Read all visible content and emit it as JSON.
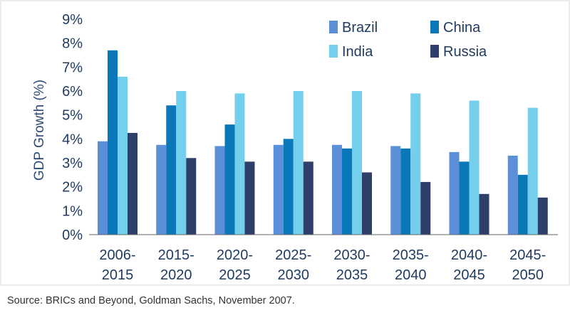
{
  "chart_data": {
    "type": "bar",
    "title": "",
    "xlabel": "",
    "ylabel": "GDP Growth (%)",
    "ylim": [
      0,
      9
    ],
    "yticks": [
      "0%",
      "1%",
      "2%",
      "3%",
      "4%",
      "5%",
      "6%",
      "7%",
      "8%",
      "9%"
    ],
    "categories": [
      [
        "2006-",
        "2015"
      ],
      [
        "2015-",
        "2020"
      ],
      [
        "2020-",
        "2025"
      ],
      [
        "2025-",
        "2030"
      ],
      [
        "2030-",
        "2035"
      ],
      [
        "2035-",
        "2040"
      ],
      [
        "2040-",
        "2045"
      ],
      [
        "2045-",
        "2050"
      ]
    ],
    "series": [
      {
        "name": "Brazil",
        "color": "#5b8fd8",
        "values": [
          3.9,
          3.75,
          3.7,
          3.75,
          3.75,
          3.7,
          3.45,
          3.3
        ]
      },
      {
        "name": "China",
        "color": "#0a78b8",
        "values": [
          7.7,
          5.4,
          4.6,
          4.0,
          3.6,
          3.6,
          3.05,
          2.5
        ]
      },
      {
        "name": "India",
        "color": "#73cfec",
        "values": [
          6.6,
          6.0,
          5.9,
          6.0,
          6.0,
          5.9,
          5.6,
          5.3
        ]
      },
      {
        "name": "Russia",
        "color": "#2e3f6a",
        "values": [
          4.25,
          3.2,
          3.05,
          3.05,
          2.6,
          2.2,
          1.7,
          1.55
        ]
      }
    ],
    "legend_position": "top-right",
    "grid": false
  },
  "source_note": "Source: BRICs and Beyond, Goldman Sachs, November 2007."
}
